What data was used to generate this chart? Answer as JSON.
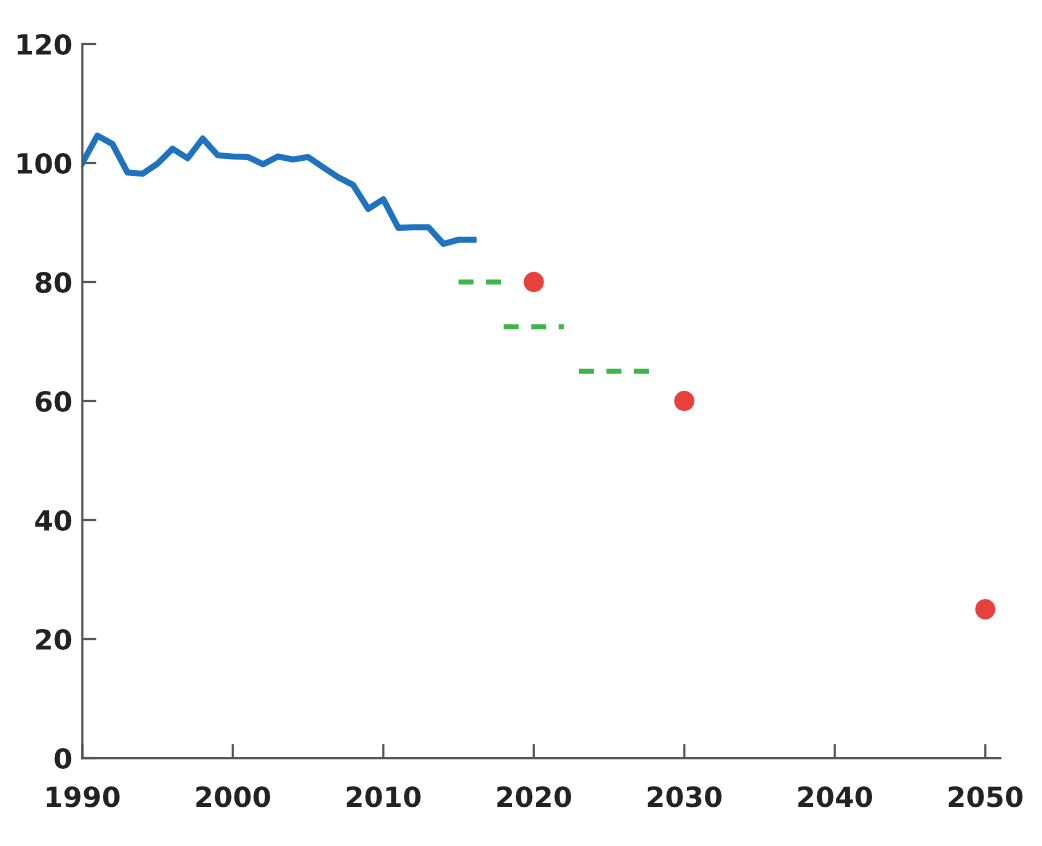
{
  "chart_data": {
    "type": "line",
    "xlim": [
      1990,
      2051
    ],
    "ylim": [
      0,
      120
    ],
    "xticks": [
      1990,
      2000,
      2010,
      2020,
      2030,
      2040,
      2050
    ],
    "yticks": [
      0,
      20,
      40,
      60,
      80,
      100,
      120
    ],
    "grid": false,
    "legend": false,
    "marker": "none",
    "series": [
      {
        "color": "#1f72bd",
        "line_style": "solid",
        "x": [
          1990,
          1991,
          1992,
          1993,
          1994,
          1995,
          1996,
          1997,
          1998,
          1999,
          2000,
          2001,
          2002,
          2003,
          2004,
          2005,
          2006,
          2007,
          2008,
          2009,
          2010,
          2011,
          2012,
          2013,
          2014,
          2015,
          2016
        ],
        "values": [
          100,
          104.6,
          103.2,
          98.4,
          98.2,
          99.9,
          102.4,
          100.8,
          104.1,
          101.3,
          101.1,
          101,
          99.8,
          101.1,
          100.6,
          101,
          99.3,
          97.6,
          96.3,
          92.3,
          93.9,
          89.1,
          89.2,
          89.2,
          86.4,
          87.1,
          87.1
        ]
      },
      {
        "type": "scatter",
        "color": "#e8413c",
        "marker": "circle",
        "x": [
          2020,
          2030,
          2050
        ],
        "values": [
          80,
          60,
          25
        ]
      },
      {
        "color": "#3cb54a",
        "line_style": "dashed",
        "x": [
          2015,
          2018
        ],
        "values": [
          80,
          80
        ]
      },
      {
        "color": "#3cb54a",
        "line_style": "dashed",
        "x": [
          2018,
          2022
        ],
        "values": [
          72.5,
          72.5
        ]
      },
      {
        "color": "#3cb54a",
        "line_style": "dashed",
        "x": [
          2023,
          2028
        ],
        "values": [
          65,
          65
        ]
      }
    ]
  }
}
